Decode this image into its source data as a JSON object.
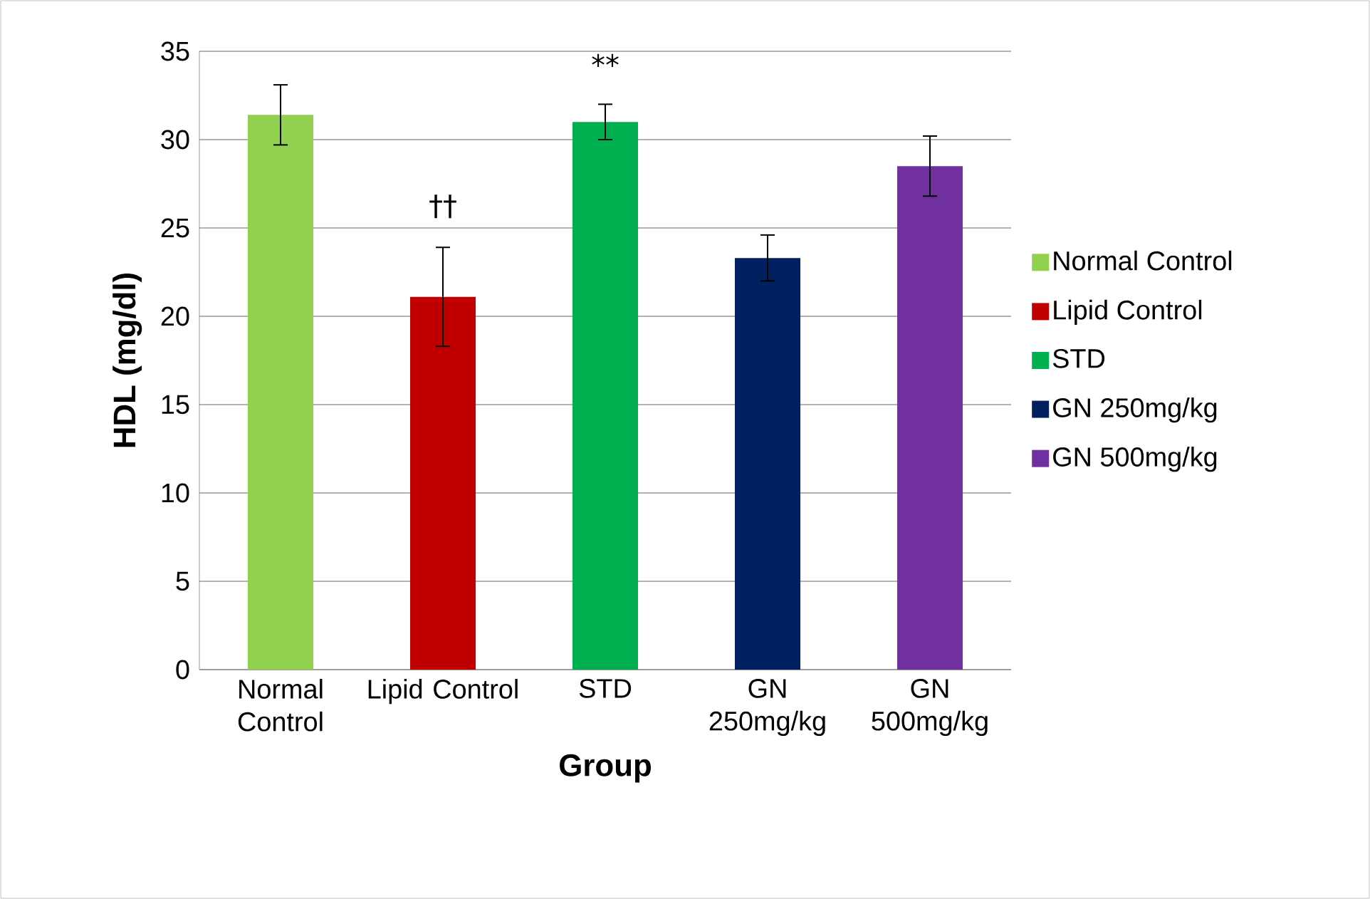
{
  "chart_data": {
    "type": "bar",
    "xlabel": "Group",
    "ylabel": "HDL (mg/dl)",
    "categories": [
      "Normal Control",
      "Lipid Control",
      "STD",
      "GN 250mg/kg",
      "GN 500mg/kg"
    ],
    "series": [
      {
        "name": "Normal Control",
        "color": "#92d050",
        "values": [
          31.4,
          null,
          null,
          null,
          null
        ],
        "errors": [
          1.7,
          null,
          null,
          null,
          null
        ]
      },
      {
        "name": "Lipid Control",
        "color": "#c00000",
        "values": [
          null,
          21.1,
          null,
          null,
          null
        ],
        "errors": [
          null,
          2.8,
          null,
          null,
          null
        ]
      },
      {
        "name": "STD",
        "color": "#00b050",
        "values": [
          null,
          null,
          31.0,
          null,
          null
        ],
        "errors": [
          null,
          null,
          1.0,
          null,
          null
        ]
      },
      {
        "name": "GN 250mg/kg",
        "color": "#002060",
        "values": [
          null,
          null,
          null,
          23.3,
          null
        ],
        "errors": [
          null,
          null,
          null,
          1.3,
          null
        ]
      },
      {
        "name": "GN 500mg/kg",
        "color": "#7030a0",
        "values": [
          null,
          null,
          null,
          null,
          28.5
        ],
        "errors": [
          null,
          null,
          null,
          null,
          1.7
        ]
      }
    ],
    "ylim": [
      0,
      35
    ],
    "yticks": [
      0,
      5,
      10,
      15,
      20,
      25,
      30,
      35
    ],
    "grid": "y",
    "legend": "right",
    "annotations": [
      {
        "text": "††",
        "x": "Lipid Control",
        "y": 21.1
      },
      {
        "text": "**",
        "x": "STD",
        "y": 31.0
      }
    ]
  }
}
